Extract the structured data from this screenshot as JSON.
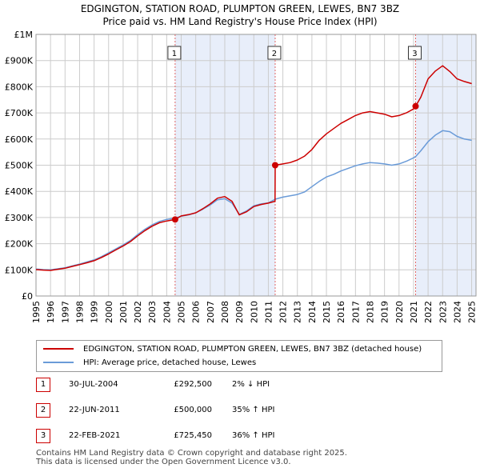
{
  "title_line1": "EDGINGTON, STATION ROAD, PLUMPTON GREEN, LEWES, BN7 3BZ",
  "title_line2": "Price paid vs. HM Land Registry's House Price Index (HPI)",
  "legend": {
    "property_label": "EDGINGTON, STATION ROAD, PLUMPTON GREEN, LEWES, BN7 3BZ (detached house)",
    "hpi_label": "HPI: Average price, detached house, Lewes"
  },
  "colors": {
    "property": "#cc0000",
    "hpi": "#6a9bd8",
    "shade": "#e8eefa",
    "grid": "#cccccc",
    "marker_line": "#e06666"
  },
  "sales": [
    {
      "num": "1",
      "date": "30-JUL-2004",
      "price": "£292,500",
      "hpi": "2% ↓ HPI"
    },
    {
      "num": "2",
      "date": "22-JUN-2011",
      "price": "£500,000",
      "hpi": "35% ↑ HPI"
    },
    {
      "num": "3",
      "date": "22-FEB-2021",
      "price": "£725,450",
      "hpi": "36% ↑ HPI"
    }
  ],
  "footer_line1": "Contains HM Land Registry data © Crown copyright and database right 2025.",
  "footer_line2": "This data is licensed under the Open Government Licence v3.0.",
  "chart_data": {
    "type": "line",
    "title": "EDGINGTON, STATION ROAD, PLUMPTON GREEN, LEWES, BN7 3BZ",
    "subtitle": "Price paid vs. HM Land Registry's House Price Index (HPI)",
    "xlim": [
      1995,
      2025.3
    ],
    "ylim": [
      0,
      1000000
    ],
    "x_ticks": [
      "1995",
      "1996",
      "1997",
      "1998",
      "1999",
      "2000",
      "2001",
      "2002",
      "2003",
      "2004",
      "2005",
      "2006",
      "2007",
      "2008",
      "2009",
      "2010",
      "2011",
      "2012",
      "2013",
      "2014",
      "2015",
      "2016",
      "2017",
      "2018",
      "2019",
      "2020",
      "2021",
      "2022",
      "2023",
      "2024",
      "2025"
    ],
    "y_ticks": [
      {
        "value": 0,
        "label": "£0"
      },
      {
        "value": 100000,
        "label": "£100K"
      },
      {
        "value": 200000,
        "label": "£200K"
      },
      {
        "value": 300000,
        "label": "£300K"
      },
      {
        "value": 400000,
        "label": "£400K"
      },
      {
        "value": 500000,
        "label": "£500K"
      },
      {
        "value": 600000,
        "label": "£600K"
      },
      {
        "value": 700000,
        "label": "£700K"
      },
      {
        "value": 800000,
        "label": "£800K"
      },
      {
        "value": 900000,
        "label": "£900K"
      },
      {
        "value": 1000000,
        "label": "£1M"
      }
    ],
    "grid": true,
    "shaded_periods": [
      [
        2004.58,
        2011.47
      ],
      [
        2021.14,
        2025.3
      ]
    ],
    "sale_points": [
      {
        "label": "1",
        "x": 2004.58,
        "y": 292500
      },
      {
        "label": "2",
        "x": 2011.47,
        "y": 500000
      },
      {
        "label": "3",
        "x": 2021.14,
        "y": 725450
      }
    ],
    "series": [
      {
        "name": "HPI: Average price, detached house, Lewes",
        "x": [
          1995,
          1995.5,
          1996,
          1996.5,
          1997,
          1997.5,
          1998,
          1998.5,
          1999,
          1999.5,
          2000,
          2000.5,
          2001,
          2001.5,
          2002,
          2002.5,
          2003,
          2003.5,
          2004,
          2004.58,
          2005,
          2005.5,
          2006,
          2006.5,
          2007,
          2007.5,
          2008,
          2008.5,
          2009,
          2009.5,
          2010,
          2010.5,
          2011,
          2011.47,
          2012,
          2012.5,
          2013,
          2013.5,
          2014,
          2014.5,
          2015,
          2015.5,
          2016,
          2016.5,
          2017,
          2017.5,
          2018,
          2018.5,
          2019,
          2019.5,
          2020,
          2020.5,
          2021,
          2021.14,
          2021.5,
          2022,
          2022.5,
          2023,
          2023.5,
          2024,
          2024.5,
          2025
        ],
        "values": [
          103000,
          101000,
          100000,
          104000,
          108000,
          115000,
          122000,
          130000,
          138000,
          150000,
          165000,
          180000,
          195000,
          212000,
          235000,
          255000,
          272000,
          285000,
          293000,
          298000,
          305000,
          310000,
          318000,
          332000,
          348000,
          368000,
          372000,
          355000,
          312000,
          325000,
          345000,
          352000,
          356000,
          370000,
          378000,
          383000,
          388000,
          398000,
          418000,
          438000,
          455000,
          465000,
          478000,
          488000,
          498000,
          505000,
          510000,
          508000,
          505000,
          500000,
          505000,
          515000,
          528000,
          533000,
          555000,
          590000,
          615000,
          632000,
          628000,
          610000,
          600000,
          595000
        ]
      },
      {
        "name": "EDGINGTON, STATION ROAD, PLUMPTON GREEN, LEWES, BN7 3BZ (detached house)",
        "x": [
          1995,
          1995.5,
          1996,
          1996.5,
          1997,
          1997.5,
          1998,
          1998.5,
          1999,
          1999.5,
          2000,
          2000.5,
          2001,
          2001.5,
          2002,
          2002.5,
          2003,
          2003.5,
          2004,
          2004.58,
          2005,
          2005.5,
          2006,
          2006.5,
          2007,
          2007.5,
          2008,
          2008.5,
          2009,
          2009.5,
          2010,
          2010.5,
          2011,
          2011.46,
          2011.47,
          2012,
          2012.5,
          2013,
          2013.5,
          2014,
          2014.5,
          2015,
          2015.5,
          2016,
          2016.5,
          2017,
          2017.5,
          2018,
          2018.5,
          2019,
          2019.5,
          2020,
          2020.5,
          2021,
          2021.14,
          2021.5,
          2022,
          2022.5,
          2023,
          2023.5,
          2024,
          2024.5,
          2025
        ],
        "values": [
          101000,
          99000,
          98000,
          102000,
          106000,
          113000,
          120000,
          127000,
          135000,
          147000,
          161000,
          176000,
          191000,
          208000,
          230000,
          250000,
          267000,
          280000,
          287000,
          292500,
          306000,
          311000,
          318000,
          334000,
          352000,
          374000,
          380000,
          362000,
          310000,
          322000,
          342000,
          350000,
          355000,
          362000,
          500000,
          505000,
          510000,
          520000,
          535000,
          560000,
          595000,
          620000,
          640000,
          660000,
          675000,
          690000,
          700000,
          705000,
          700000,
          695000,
          685000,
          690000,
          700000,
          715000,
          725450,
          760000,
          830000,
          860000,
          880000,
          858000,
          830000,
          820000,
          812000
        ]
      }
    ]
  }
}
